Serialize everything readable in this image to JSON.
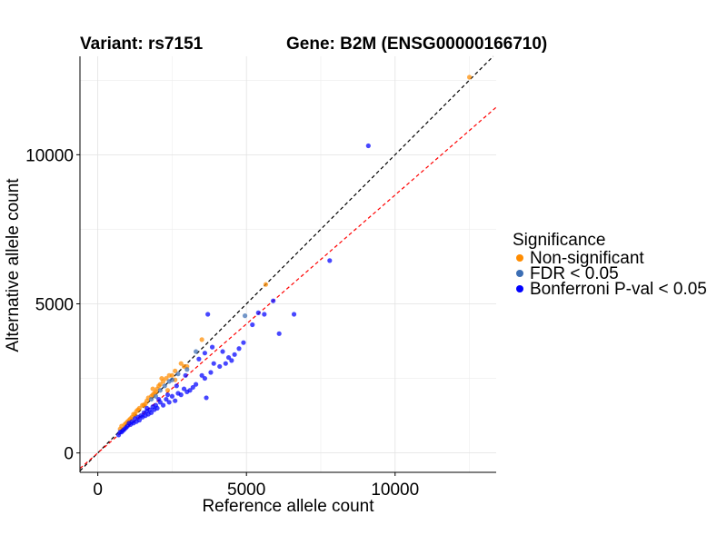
{
  "chart_data": {
    "type": "scatter",
    "title_variant": "Variant: rs7151",
    "title_gene": "Gene: B2M (ENSG00000166710)",
    "xlabel": "Reference allele count",
    "ylabel": "Alternative allele count",
    "xlim": [
      -600,
      13400
    ],
    "ylim": [
      -650,
      13300
    ],
    "x_ticks": [
      0,
      5000,
      10000
    ],
    "x_tick_labels": [
      "0",
      "5000",
      "10000"
    ],
    "y_ticks": [
      0,
      5000,
      10000
    ],
    "y_tick_labels": [
      "0",
      "5000",
      "10000"
    ],
    "grid": true,
    "legend": {
      "title": "Significance",
      "placement": "right",
      "entries": [
        {
          "label": "Non-significant",
          "color": "#FF8C00"
        },
        {
          "label": "FDR < 0.05",
          "color": "#3C6EB4"
        },
        {
          "label": "Bonferroni P-val < 0.05",
          "color": "#0000FF"
        }
      ]
    },
    "reference_lines": [
      {
        "name": "identity",
        "slope": 1.0,
        "intercept": 0,
        "color": "#000000",
        "style": "dashed"
      },
      {
        "name": "fit",
        "slope": 0.865,
        "intercept": 0,
        "color": "#FF0000",
        "style": "dashed"
      }
    ],
    "series": [
      {
        "name": "Non-significant",
        "color": "#FF8C00",
        "points": [
          [
            12500,
            12600
          ],
          [
            5650,
            5650
          ],
          [
            3500,
            3800
          ],
          [
            2900,
            2900
          ],
          [
            2800,
            3000
          ],
          [
            2600,
            2750
          ],
          [
            2500,
            2600
          ],
          [
            2400,
            2600
          ],
          [
            2300,
            2500
          ],
          [
            2200,
            2400
          ],
          [
            2100,
            2300
          ],
          [
            2050,
            2250
          ],
          [
            2000,
            2150
          ],
          [
            1950,
            2050
          ],
          [
            1900,
            2000
          ],
          [
            1850,
            1950
          ],
          [
            1800,
            1900
          ],
          [
            1700,
            1850
          ],
          [
            1650,
            1750
          ],
          [
            1600,
            1650
          ],
          [
            1550,
            1600
          ],
          [
            1500,
            1600
          ],
          [
            1400,
            1500
          ],
          [
            1350,
            1450
          ],
          [
            1300,
            1400
          ],
          [
            1250,
            1300
          ],
          [
            1200,
            1300
          ],
          [
            1150,
            1200
          ],
          [
            1100,
            1150
          ],
          [
            1050,
            1100
          ],
          [
            1000,
            1050
          ],
          [
            950,
            1000
          ],
          [
            900,
            950
          ],
          [
            800,
            900
          ],
          [
            750,
            800
          ],
          [
            2350,
            2100
          ],
          [
            2600,
            2450
          ],
          [
            3000,
            2900
          ],
          [
            1850,
            2150
          ],
          [
            2150,
            2500
          ]
        ]
      },
      {
        "name": "FDR < 0.05",
        "color": "#3C6EB4",
        "points": [
          [
            4950,
            4600
          ],
          [
            3300,
            3400
          ],
          [
            3000,
            2800
          ],
          [
            2700,
            2650
          ],
          [
            2500,
            2450
          ],
          [
            2400,
            2400
          ],
          [
            2250,
            2250
          ],
          [
            2100,
            2100
          ],
          [
            1950,
            1900
          ],
          [
            1800,
            1800
          ]
        ]
      },
      {
        "name": "Bonferroni P-val < 0.05",
        "color": "#0000FF",
        "points": [
          [
            9100,
            10300
          ],
          [
            7800,
            6450
          ],
          [
            6600,
            4650
          ],
          [
            6100,
            4000
          ],
          [
            5900,
            5100
          ],
          [
            5600,
            4650
          ],
          [
            5400,
            4700
          ],
          [
            5200,
            4300
          ],
          [
            3700,
            4650
          ],
          [
            3650,
            1850
          ],
          [
            4900,
            3700
          ],
          [
            4750,
            3500
          ],
          [
            4600,
            3300
          ],
          [
            4500,
            3100
          ],
          [
            4400,
            3200
          ],
          [
            4300,
            3000
          ],
          [
            4100,
            2900
          ],
          [
            3900,
            3000
          ],
          [
            3800,
            2700
          ],
          [
            3600,
            2500
          ],
          [
            3500,
            2600
          ],
          [
            3300,
            2300
          ],
          [
            3200,
            2200
          ],
          [
            3100,
            2100
          ],
          [
            3000,
            2050
          ],
          [
            2900,
            2150
          ],
          [
            2800,
            1950
          ],
          [
            2700,
            2000
          ],
          [
            2600,
            1750
          ],
          [
            2500,
            1900
          ],
          [
            2400,
            1700
          ],
          [
            2300,
            1800
          ],
          [
            2200,
            1600
          ],
          [
            2100,
            1700
          ],
          [
            2000,
            1500
          ],
          [
            1950,
            1600
          ],
          [
            1900,
            1450
          ],
          [
            1850,
            1550
          ],
          [
            1800,
            1350
          ],
          [
            1750,
            1450
          ],
          [
            1700,
            1300
          ],
          [
            1650,
            1400
          ],
          [
            1600,
            1250
          ],
          [
            1550,
            1350
          ],
          [
            1500,
            1200
          ],
          [
            1450,
            1250
          ],
          [
            1400,
            1100
          ],
          [
            1350,
            1200
          ],
          [
            1300,
            1050
          ],
          [
            1250,
            1150
          ],
          [
            1200,
            1000
          ],
          [
            1150,
            1050
          ],
          [
            1100,
            950
          ],
          [
            1050,
            1000
          ],
          [
            1000,
            900
          ],
          [
            950,
            850
          ],
          [
            900,
            800
          ],
          [
            850,
            750
          ],
          [
            800,
            700
          ],
          [
            750,
            700
          ],
          [
            700,
            600
          ],
          [
            3400,
            3150
          ],
          [
            3600,
            3350
          ],
          [
            4200,
            3400
          ],
          [
            3850,
            3550
          ],
          [
            2950,
            2600
          ],
          [
            2650,
            2250
          ],
          [
            2350,
            1950
          ],
          [
            2050,
            1800
          ],
          [
            1650,
            1500
          ]
        ]
      }
    ]
  }
}
